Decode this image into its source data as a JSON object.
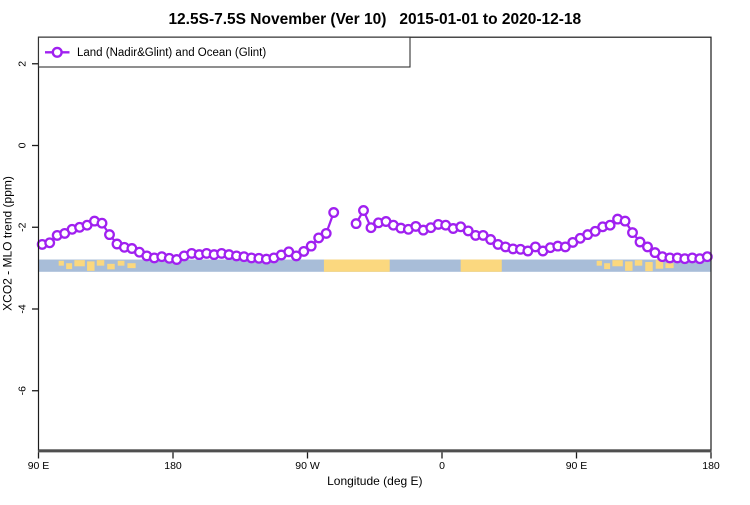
{
  "figure": {
    "title": "12.5S-7.5S November (Ver 10)   2015-01-01 to 2020-12-18",
    "background": "#ffffff"
  },
  "legend": {
    "label": "Land (Nadir&Glint) and Ocean (Glint)",
    "position": "top-left"
  },
  "colors": {
    "series": "#a020f0",
    "marker_fill": "#ffffff",
    "ocean_strip": "#a8bdd8",
    "land_strip": "#fbd87f",
    "axis_box": "#1c1c1c",
    "axis_line": "#4f4f4f"
  },
  "chart_data": {
    "type": "line",
    "title": "12.5S-7.5S November (Ver 10)   2015-01-01 to 2020-12-18",
    "xlabel": "Longitude (deg E)",
    "ylabel": "XCO2 - MLO trend (ppm)",
    "xlim": [
      90,
      540
    ],
    "ylim": [
      -7.45,
      2.65
    ],
    "grid": false,
    "legend_position": "top-left",
    "x_ticks": [
      {
        "value": 90,
        "label": "90 E"
      },
      {
        "value": 180,
        "label": "180"
      },
      {
        "value": 270,
        "label": "90 W"
      },
      {
        "value": 360,
        "label": "0"
      },
      {
        "value": 450,
        "label": "90 E"
      },
      {
        "value": 540,
        "label": "180"
      }
    ],
    "y_ticks": [
      {
        "value": 2,
        "label": "2"
      },
      {
        "value": 0,
        "label": "0"
      },
      {
        "value": -2,
        "label": "-2"
      },
      {
        "value": -4,
        "label": "-4"
      },
      {
        "value": -6,
        "label": "-6"
      }
    ],
    "series": [
      {
        "name": "Land (Nadir&Glint) and Ocean (Glint)",
        "color": "#a020f0",
        "marker": "open-circle",
        "x": [
          92.5,
          97.5,
          102.5,
          107.5,
          112.5,
          117.5,
          122.5,
          127.5,
          132.5,
          137.5,
          142.5,
          147.5,
          152.5,
          157.5,
          162.5,
          167.5,
          172.5,
          177.5,
          182.5,
          187.5,
          192.5,
          197.5,
          202.5,
          207.5,
          212.5,
          217.5,
          222.5,
          227.5,
          232.5,
          237.5,
          242.5,
          247.5,
          252.5,
          257.5,
          262.5,
          267.5,
          272.5,
          277.5,
          282.5,
          287.5,
          292.5,
          297.5,
          302.5,
          307.5,
          312.5,
          317.5,
          322.5,
          327.5,
          332.5,
          337.5,
          342.5,
          347.5,
          352.5,
          357.5,
          362.5,
          367.5,
          372.5,
          377.5,
          382.5,
          387.5,
          392.5,
          397.5,
          402.5,
          407.5,
          412.5,
          417.5,
          422.5,
          427.5,
          432.5,
          437.5,
          442.5,
          447.5,
          452.5,
          457.5,
          462.5,
          467.5,
          472.5,
          477.5,
          482.5,
          487.5,
          492.5,
          497.5,
          502.5,
          507.5,
          512.5,
          517.5,
          522.5,
          527.5,
          532.5,
          537.5
        ],
        "y": [
          -2.42,
          -2.38,
          -2.2,
          -2.15,
          -2.05,
          -2.0,
          -1.95,
          -1.85,
          -1.9,
          -2.18,
          -2.41,
          -2.49,
          -2.52,
          -2.61,
          -2.7,
          -2.75,
          -2.72,
          -2.76,
          -2.79,
          -2.7,
          -2.64,
          -2.67,
          -2.64,
          -2.67,
          -2.64,
          -2.67,
          -2.7,
          -2.72,
          -2.75,
          -2.76,
          -2.78,
          -2.75,
          -2.68,
          -2.6,
          -2.7,
          -2.59,
          -2.46,
          -2.26,
          -2.15,
          -1.64,
          null,
          null,
          -1.91,
          -1.59,
          -2.01,
          -1.89,
          -1.86,
          -1.95,
          -2.02,
          -2.05,
          -1.98,
          -2.07,
          -2.01,
          -1.93,
          -1.95,
          -2.03,
          -1.99,
          -2.09,
          -2.2,
          -2.2,
          -2.3,
          -2.42,
          -2.48,
          -2.53,
          -2.54,
          -2.58,
          -2.48,
          -2.58,
          -2.5,
          -2.46,
          -2.48,
          -2.37,
          -2.27,
          -2.18,
          -2.1,
          -1.99,
          -1.95,
          -1.8,
          -1.85,
          -2.13,
          -2.36,
          -2.48,
          -2.62,
          -2.72,
          -2.75,
          -2.75,
          -2.77,
          -2.75,
          -2.77,
          -2.72
        ]
      }
    ],
    "map_strip": {
      "description": "land-ocean strip for 12.5S-7.5S latitude band",
      "value_top": -2.79,
      "value_bottom": -3.09,
      "ocean_color": "#a8bdd8",
      "land_color": "#fbd87f",
      "land_segments": [
        [
          281,
          325
        ],
        [
          372.5,
          400
        ]
      ],
      "island_segments": [
        [
          103.5,
          107.0,
          0.1,
          0.5
        ],
        [
          108.5,
          112.5,
          0.3,
          0.78
        ],
        [
          114.0,
          121.0,
          0.05,
          0.55
        ],
        [
          122.5,
          127.5,
          0.15,
          0.92
        ],
        [
          129.0,
          134.0,
          0.05,
          0.5
        ],
        [
          136.0,
          141.0,
          0.35,
          0.8
        ],
        [
          143.0,
          147.5,
          0.1,
          0.5
        ],
        [
          149.5,
          155.0,
          0.3,
          0.7
        ],
        [
          463.5,
          467.0,
          0.1,
          0.5
        ],
        [
          468.5,
          472.5,
          0.3,
          0.78
        ],
        [
          474.0,
          481.0,
          0.05,
          0.55
        ],
        [
          482.5,
          487.5,
          0.15,
          0.92
        ],
        [
          489.0,
          494.0,
          0.05,
          0.5
        ],
        [
          496.0,
          501.0,
          0.2,
          0.95
        ],
        [
          503.0,
          508.0,
          0.05,
          0.75
        ],
        [
          509.5,
          515.0,
          0.3,
          0.7
        ]
      ]
    }
  }
}
